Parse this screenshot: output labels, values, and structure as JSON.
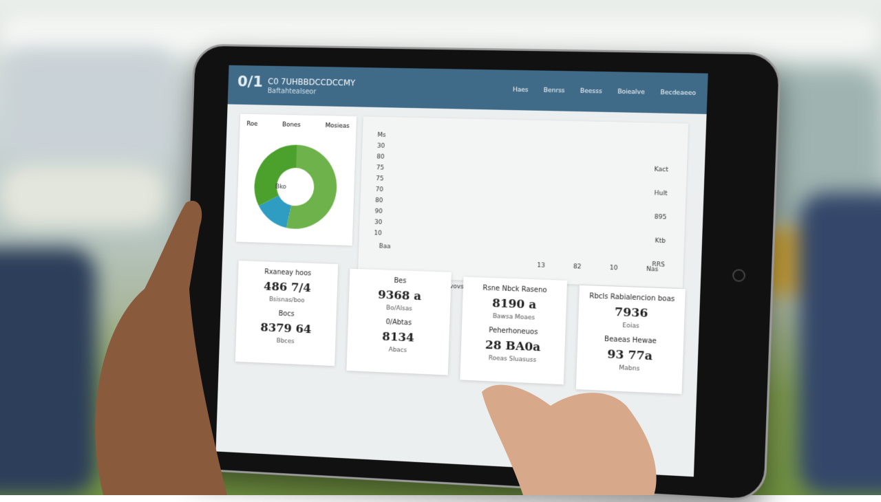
{
  "header": {
    "logo": "0/1",
    "title": "C0 7UHBBDCCDCCMY",
    "subtitle": "Baftahtealseor",
    "nav": [
      "Haes",
      "Benrss",
      "Beesss",
      "Boiealve",
      "Becdeaeeo"
    ]
  },
  "donut": {
    "legend": [
      "Roe",
      "Bones",
      "Mosieas"
    ],
    "center_label": "Bko",
    "segments": [
      {
        "value": 53,
        "color": "#6db24a"
      },
      {
        "value": 14,
        "color": "#2f9cc2"
      },
      {
        "value": 33,
        "color": "#4ba12c"
      }
    ]
  },
  "chart_panel": {
    "left_labels": [
      "Ms",
      "30",
      "80",
      "75",
      "75",
      "70",
      "80",
      "90",
      "30",
      "10"
    ],
    "right_labels": [
      "Kact",
      "Hult",
      "895",
      "Ktb",
      "RRS"
    ],
    "bottom_labels": [
      "Baa",
      "13",
      "82",
      "10",
      "Nas"
    ],
    "caption": "Rsvovs"
  },
  "cards": [
    {
      "items": [
        {
          "label": "Rxaneay hoos",
          "value": "486 7/4",
          "caption": "Bsisnas/boo"
        },
        {
          "label": "Bocs",
          "value": "8379 64",
          "caption": "Bbces"
        }
      ]
    },
    {
      "items": [
        {
          "label": "Bes",
          "value": "9368 a",
          "caption": "Bo/Alsas"
        },
        {
          "label": "0/Abtas",
          "value": "8134",
          "caption": "Abacs"
        }
      ]
    },
    {
      "items": [
        {
          "label": "Rsne Nbck Raseno",
          "value": "8190 a",
          "caption": "Bawsa Moaes"
        },
        {
          "label": "Peherhoneuos",
          "value": "28 BA0a",
          "caption": "Roeas Sluasuss"
        }
      ]
    },
    {
      "items": [
        {
          "label": "Rbcls Rabialencion boas",
          "value": "7936",
          "caption": "Eoias"
        },
        {
          "label": "Beaeas Hewae",
          "value": "93 77a",
          "caption": "Mabns"
        }
      ]
    }
  ]
}
